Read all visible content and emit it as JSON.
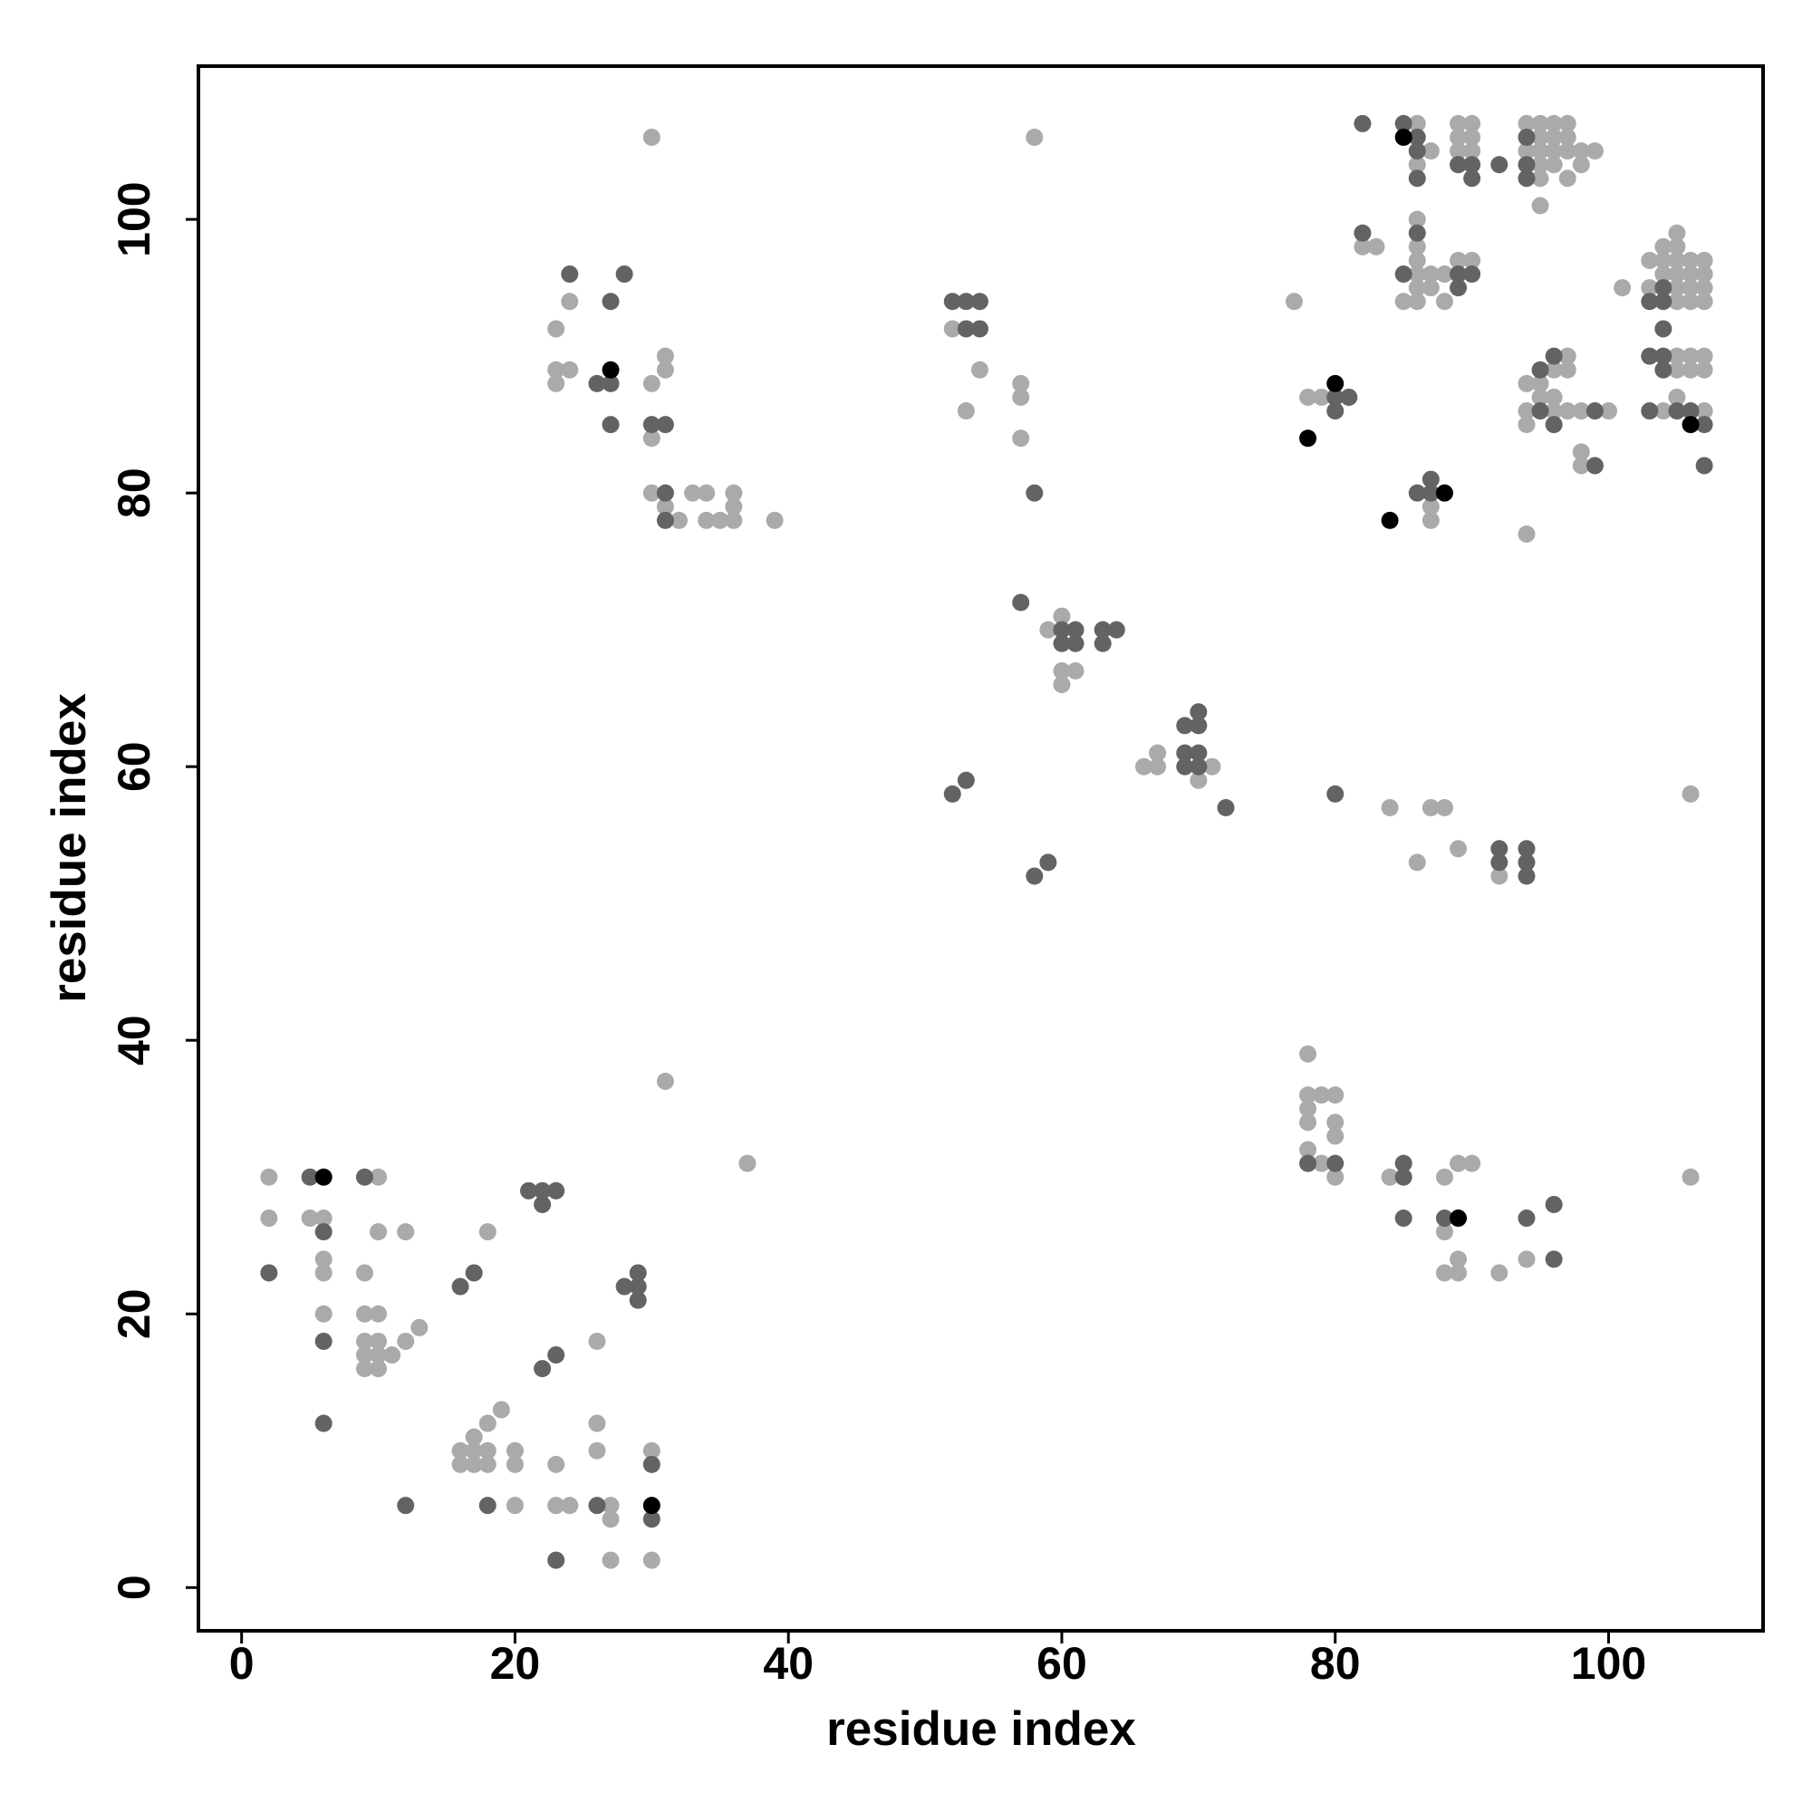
{
  "chart_data": {
    "type": "scatter",
    "x_label": "residue index",
    "y_label": "residue index",
    "xlim": [
      -3.16,
      111.3
    ],
    "ylim": [
      -3.16,
      111.2
    ],
    "xticks": [
      0,
      20,
      40,
      60,
      80,
      100
    ],
    "yticks": [
      0,
      20,
      40,
      60,
      80,
      100
    ],
    "grid": false,
    "series": [
      {
        "color": "#aaaaaa",
        "x": [
          2,
          2,
          5,
          6,
          6,
          6,
          6,
          10,
          10,
          9,
          9,
          10,
          9,
          10,
          9,
          10,
          11,
          9,
          10,
          12,
          13,
          12,
          18,
          16,
          17,
          18,
          16,
          17,
          18,
          17,
          18,
          19,
          20,
          20,
          20,
          23,
          23,
          24,
          26,
          26,
          26,
          27,
          27,
          27,
          30,
          30,
          31,
          37,
          30,
          23,
          24,
          23,
          24,
          23,
          30,
          31,
          31,
          30,
          30,
          31,
          32,
          33,
          34,
          34,
          35,
          36,
          36,
          36,
          39,
          58,
          52,
          54,
          53,
          57,
          57,
          57,
          59,
          60,
          60,
          61,
          60,
          66,
          67,
          67,
          70,
          71,
          77,
          78,
          79,
          87,
          87,
          86,
          87,
          86,
          89,
          90,
          89,
          90,
          89,
          90,
          94,
          95,
          96,
          97,
          95,
          96,
          97,
          94,
          95,
          96,
          97,
          98,
          99,
          95,
          96,
          98,
          95,
          97,
          95,
          82,
          83,
          86,
          86,
          86,
          86,
          87,
          88,
          89,
          90,
          86,
          87,
          85,
          86,
          88,
          101,
          103,
          104,
          105,
          105,
          104,
          105,
          106,
          107,
          104,
          105,
          106,
          107,
          103,
          105,
          106,
          107,
          105,
          106,
          107,
          105,
          106,
          107,
          105,
          106,
          107,
          105,
          104,
          107,
          94,
          95,
          97,
          96,
          97,
          95,
          96,
          94,
          96,
          97,
          98,
          100,
          94,
          98,
          98,
          94,
          84,
          87,
          88,
          86,
          89,
          92,
          106,
          78,
          78,
          79,
          80,
          78,
          78,
          80,
          80,
          78,
          79,
          80,
          84,
          88,
          89,
          90,
          88,
          89,
          88,
          89,
          92,
          94,
          106
        ],
        "values": [
          30,
          27,
          27,
          27,
          24,
          23,
          20,
          30,
          26,
          23,
          20,
          20,
          18,
          18,
          17,
          17,
          17,
          16,
          16,
          18,
          19,
          26,
          26,
          10,
          10,
          10,
          9,
          9,
          9,
          11,
          12,
          13,
          10,
          9,
          6,
          9,
          6,
          6,
          18,
          12,
          10,
          6,
          5,
          2,
          10,
          2,
          37,
          31,
          106,
          92,
          94,
          89,
          89,
          88,
          88,
          90,
          89,
          84,
          80,
          79,
          78,
          80,
          80,
          78,
          78,
          80,
          79,
          78,
          78,
          106,
          92,
          89,
          86,
          88,
          87,
          84,
          70,
          71,
          67,
          67,
          66,
          60,
          61,
          60,
          59,
          60,
          94,
          87,
          87,
          79,
          78,
          107,
          105,
          104,
          107,
          107,
          106,
          106,
          105,
          105,
          107,
          107,
          107,
          107,
          106,
          106,
          106,
          105,
          105,
          105,
          105,
          105,
          105,
          104,
          104,
          104,
          103,
          103,
          101,
          98,
          98,
          100,
          98,
          97,
          96,
          96,
          96,
          97,
          97,
          95,
          95,
          94,
          94,
          94,
          95,
          97,
          98,
          99,
          98,
          97,
          97,
          97,
          97,
          96,
          96,
          96,
          96,
          95,
          95,
          95,
          95,
          94,
          94,
          94,
          90,
          90,
          90,
          89,
          89,
          89,
          87,
          86,
          86,
          88,
          88,
          90,
          89,
          89,
          87,
          87,
          86,
          86,
          86,
          86,
          86,
          85,
          83,
          82,
          77,
          57,
          57,
          57,
          53,
          54,
          52,
          58,
          39,
          36,
          36,
          36,
          35,
          34,
          34,
          33,
          32,
          31,
          30,
          30,
          30,
          31,
          31,
          26,
          24,
          23,
          23,
          23,
          24,
          30
        ]
      },
      {
        "color": "#636363",
        "x": [
          2,
          5,
          6,
          6,
          6,
          9,
          12,
          16,
          17,
          18,
          21,
          22,
          23,
          22,
          22,
          23,
          23,
          26,
          28,
          29,
          29,
          29,
          30,
          30,
          24,
          26,
          27,
          28,
          27,
          27,
          30,
          31,
          31,
          31,
          52,
          53,
          54,
          53,
          54,
          58,
          57,
          60,
          61,
          60,
          61,
          63,
          64,
          63,
          69,
          70,
          70,
          69,
          70,
          69,
          70,
          72,
          52,
          53,
          58,
          59,
          80,
          81,
          80,
          86,
          87,
          87,
          82,
          85,
          86,
          86,
          86,
          89,
          90,
          90,
          92,
          94,
          94,
          94,
          82,
          86,
          85,
          89,
          90,
          89,
          104,
          103,
          104,
          104,
          103,
          104,
          104,
          103,
          105,
          106,
          107,
          107,
          95,
          96,
          95,
          99,
          96,
          99,
          80,
          92,
          94,
          92,
          94,
          94,
          78,
          80,
          85,
          85,
          85,
          88,
          94,
          96,
          96
        ],
        "values": [
          23,
          30,
          26,
          18,
          12,
          30,
          6,
          22,
          23,
          6,
          29,
          29,
          29,
          28,
          16,
          17,
          2,
          6,
          22,
          23,
          22,
          21,
          9,
          5,
          96,
          88,
          94,
          96,
          88,
          85,
          85,
          85,
          80,
          78,
          94,
          94,
          94,
          92,
          92,
          80,
          72,
          70,
          70,
          69,
          69,
          70,
          70,
          69,
          63,
          64,
          63,
          61,
          61,
          60,
          60,
          57,
          58,
          59,
          52,
          53,
          87,
          87,
          86,
          80,
          81,
          80,
          107,
          107,
          106,
          105,
          103,
          104,
          104,
          103,
          104,
          106,
          104,
          103,
          99,
          99,
          96,
          96,
          96,
          95,
          95,
          94,
          94,
          92,
          90,
          90,
          89,
          86,
          86,
          86,
          85,
          82,
          89,
          90,
          86,
          86,
          85,
          82,
          58,
          54,
          54,
          53,
          53,
          52,
          31,
          31,
          31,
          30,
          27,
          27,
          27,
          28,
          24
        ]
      },
      {
        "color": "#000000",
        "x": [
          6,
          30,
          27,
          80,
          78,
          84,
          88,
          85,
          106,
          89
        ],
        "values": [
          30,
          6,
          89,
          88,
          84,
          78,
          80,
          106,
          85,
          27
        ]
      }
    ]
  }
}
